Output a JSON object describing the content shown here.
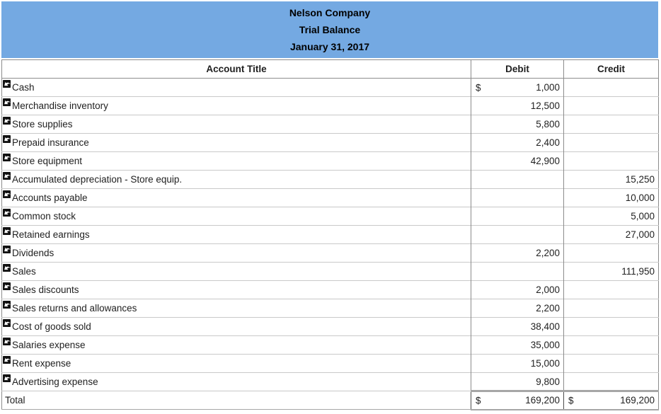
{
  "banner": {
    "company": "Nelson Company",
    "report": "Trial Balance",
    "date": "January 31, 2017",
    "bg_color": "#74a9e2"
  },
  "table": {
    "columns": [
      "Account Title",
      "Debit",
      "Credit"
    ],
    "rows": [
      {
        "title": "Cash",
        "debit_prefix": "$",
        "debit": "1,000",
        "credit_prefix": "",
        "credit": "",
        "icon": "undo-arrow-icon"
      },
      {
        "title": "Merchandise inventory",
        "debit_prefix": "",
        "debit": "12,500",
        "credit_prefix": "",
        "credit": "",
        "icon": "undo-arrow-icon"
      },
      {
        "title": "Store supplies",
        "debit_prefix": "",
        "debit": "5,800",
        "credit_prefix": "",
        "credit": "",
        "icon": "undo-arrow-icon"
      },
      {
        "title": "Prepaid insurance",
        "debit_prefix": "",
        "debit": "2,400",
        "credit_prefix": "",
        "credit": "",
        "icon": "undo-arrow-icon"
      },
      {
        "title": "Store equipment",
        "debit_prefix": "",
        "debit": "42,900",
        "credit_prefix": "",
        "credit": "",
        "icon": "undo-arrow-icon"
      },
      {
        "title": "Accumulated depreciation - Store equip.",
        "debit_prefix": "",
        "debit": "",
        "credit_prefix": "",
        "credit": "15,250",
        "icon": "undo-arrow-icon"
      },
      {
        "title": "Accounts payable",
        "debit_prefix": "",
        "debit": "",
        "credit_prefix": "",
        "credit": "10,000",
        "icon": "undo-arrow-icon"
      },
      {
        "title": "Common stock",
        "debit_prefix": "",
        "debit": "",
        "credit_prefix": "",
        "credit": "5,000",
        "icon": "undo-arrow-icon"
      },
      {
        "title": "Retained earnings",
        "debit_prefix": "",
        "debit": "",
        "credit_prefix": "",
        "credit": "27,000",
        "icon": "undo-arrow-icon"
      },
      {
        "title": "Dividends",
        "debit_prefix": "",
        "debit": "2,200",
        "credit_prefix": "",
        "credit": "",
        "icon": "undo-arrow-icon"
      },
      {
        "title": "Sales",
        "debit_prefix": "",
        "debit": "",
        "credit_prefix": "",
        "credit": "111,950",
        "icon": "undo-arrow-icon"
      },
      {
        "title": "Sales discounts",
        "debit_prefix": "",
        "debit": "2,000",
        "credit_prefix": "",
        "credit": "",
        "icon": "undo-arrow-icon"
      },
      {
        "title": "Sales returns and allowances",
        "debit_prefix": "",
        "debit": "2,200",
        "credit_prefix": "",
        "credit": "",
        "icon": "undo-arrow-icon"
      },
      {
        "title": "Cost of goods sold",
        "debit_prefix": "",
        "debit": "38,400",
        "credit_prefix": "",
        "credit": "",
        "icon": "undo-arrow-icon"
      },
      {
        "title": "Salaries expense",
        "debit_prefix": "",
        "debit": "35,000",
        "credit_prefix": "",
        "credit": "",
        "icon": "undo-arrow-icon"
      },
      {
        "title": "Rent expense",
        "debit_prefix": "",
        "debit": "15,000",
        "credit_prefix": "",
        "credit": "",
        "icon": "undo-arrow-icon"
      },
      {
        "title": "Advertising expense",
        "debit_prefix": "",
        "debit": "9,800",
        "credit_prefix": "",
        "credit": "",
        "icon": "undo-arrow-icon"
      }
    ],
    "total": {
      "label": "Total",
      "debit_prefix": "$",
      "debit": "169,200",
      "credit_prefix": "$",
      "credit": "169,200"
    }
  }
}
